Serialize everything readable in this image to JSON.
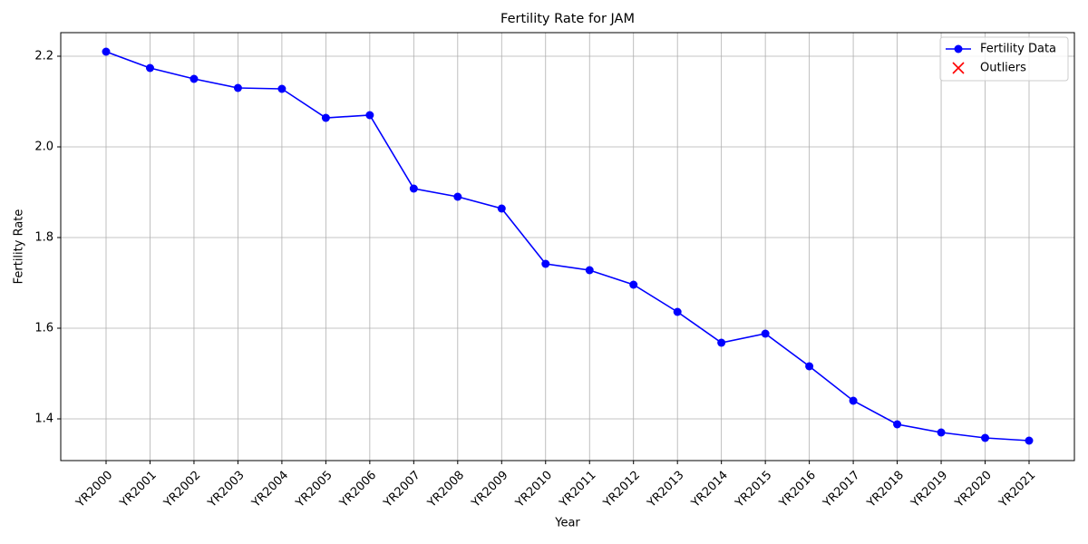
{
  "chart_data": {
    "type": "line",
    "title": "Fertility Rate for JAM",
    "x_label": "Year",
    "y_label": "Fertility Rate",
    "categories": [
      "YR2000",
      "YR2001",
      "YR2002",
      "YR2003",
      "YR2004",
      "YR2005",
      "YR2006",
      "YR2007",
      "YR2008",
      "YR2009",
      "YR2010",
      "YR2011",
      "YR2012",
      "YR2013",
      "YR2014",
      "YR2015",
      "YR2016",
      "YR2017",
      "YR2018",
      "YR2019",
      "YR2020",
      "YR2021"
    ],
    "series": [
      {
        "name": "Fertility Data",
        "color": "#0000ff",
        "marker": "o",
        "values": [
          2.21,
          2.174,
          2.15,
          2.13,
          2.128,
          2.064,
          2.07,
          1.908,
          1.89,
          1.864,
          1.742,
          1.728,
          1.696,
          1.636,
          1.568,
          1.588,
          1.516,
          1.44,
          1.388,
          1.37,
          1.358,
          1.352
        ]
      },
      {
        "name": "Outliers",
        "color": "#ff0000",
        "marker": "x",
        "values": [
          null,
          null,
          null,
          null,
          null,
          null,
          null,
          null,
          null,
          null,
          null,
          null,
          null,
          null,
          null,
          null,
          null,
          null,
          null,
          null,
          null,
          null
        ]
      }
    ],
    "ylim": [
      1.308,
      2.252
    ],
    "yticks": [
      1.4,
      1.6,
      1.8,
      {
        "value": 2,
        "label": "2.0"
      },
      2.2
    ],
    "grid": true,
    "legend": "upper right"
  }
}
